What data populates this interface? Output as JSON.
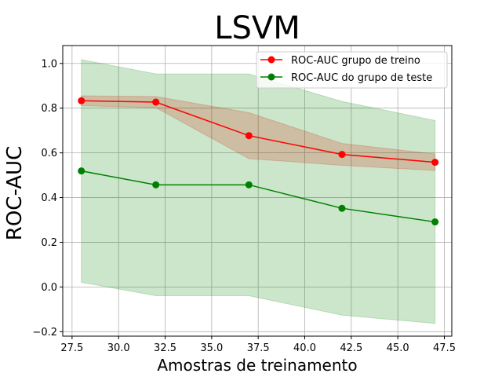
{
  "chart_data": {
    "type": "line",
    "title": "LSVM",
    "xlabel": "Amostras de treinamento",
    "ylabel": "ROC-AUC",
    "x": [
      28,
      32,
      37,
      42,
      47
    ],
    "xlim": [
      27.0,
      47.9
    ],
    "ylim": [
      -0.22,
      1.08
    ],
    "xticks": [
      27.5,
      30.0,
      32.5,
      35.0,
      37.5,
      40.0,
      42.5,
      45.0,
      47.5
    ],
    "xtick_labels": [
      "27.5",
      "30.0",
      "32.5",
      "35.0",
      "37.5",
      "40.0",
      "42.5",
      "45.0",
      "47.5"
    ],
    "yticks": [
      -0.2,
      0.0,
      0.2,
      0.4,
      0.6,
      0.8,
      1.0
    ],
    "ytick_labels": [
      "−0.2",
      "0.0",
      "0.2",
      "0.4",
      "0.6",
      "0.8",
      "1.0"
    ],
    "grid": true,
    "legend_position": "top-right",
    "series": [
      {
        "name": "ROC-AUC grupo de treino",
        "color": "#ff0000",
        "band_color": "#ff0000",
        "values": [
          0.833,
          0.827,
          0.677,
          0.593,
          0.558
        ],
        "upper": [
          0.855,
          0.852,
          0.78,
          0.642,
          0.595
        ],
        "lower": [
          0.811,
          0.802,
          0.574,
          0.544,
          0.521
        ]
      },
      {
        "name": "ROC-AUC do grupo de teste",
        "color": "#008000",
        "band_color": "#008000",
        "values": [
          0.519,
          0.457,
          0.457,
          0.352,
          0.291
        ],
        "upper": [
          1.017,
          0.953,
          0.953,
          0.83,
          0.745
        ],
        "lower": [
          0.021,
          -0.039,
          -0.039,
          -0.126,
          -0.163
        ]
      }
    ]
  }
}
